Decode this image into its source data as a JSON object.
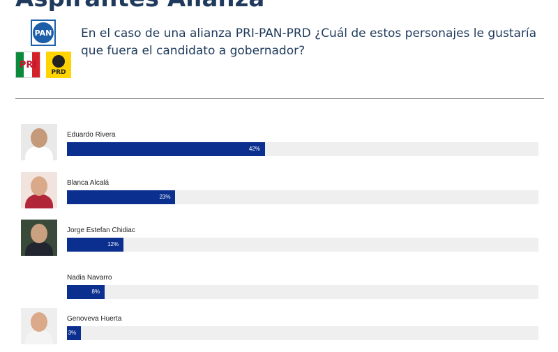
{
  "header": {
    "title": "Aspirantes Alianza",
    "question": "En el caso de una alianza PRI-PAN-PRD ¿Cuál de estos personajes le gustaría que fuera el candidato a gobernador?",
    "logos": {
      "pan": "PAN",
      "pri": "PRI",
      "prd": "PRD"
    }
  },
  "colors": {
    "bar": "#0a2f8f",
    "track": "#efefef",
    "heading": "#1f3a5c"
  },
  "chart_data": {
    "type": "bar",
    "orientation": "horizontal",
    "title": "",
    "xlim": [
      0,
      100
    ],
    "categories": [
      "Eduardo Rivera",
      "Blanca Alcalá",
      "Jorge Estefan Chidiac",
      "Nadia Navarro",
      "Genoveva Huerta"
    ],
    "values": [
      42,
      23,
      12,
      8,
      3
    ],
    "value_labels": [
      "42%",
      "23%",
      "12%",
      "8%",
      "3%"
    ],
    "has_photo": [
      true,
      true,
      true,
      false,
      true
    ]
  }
}
